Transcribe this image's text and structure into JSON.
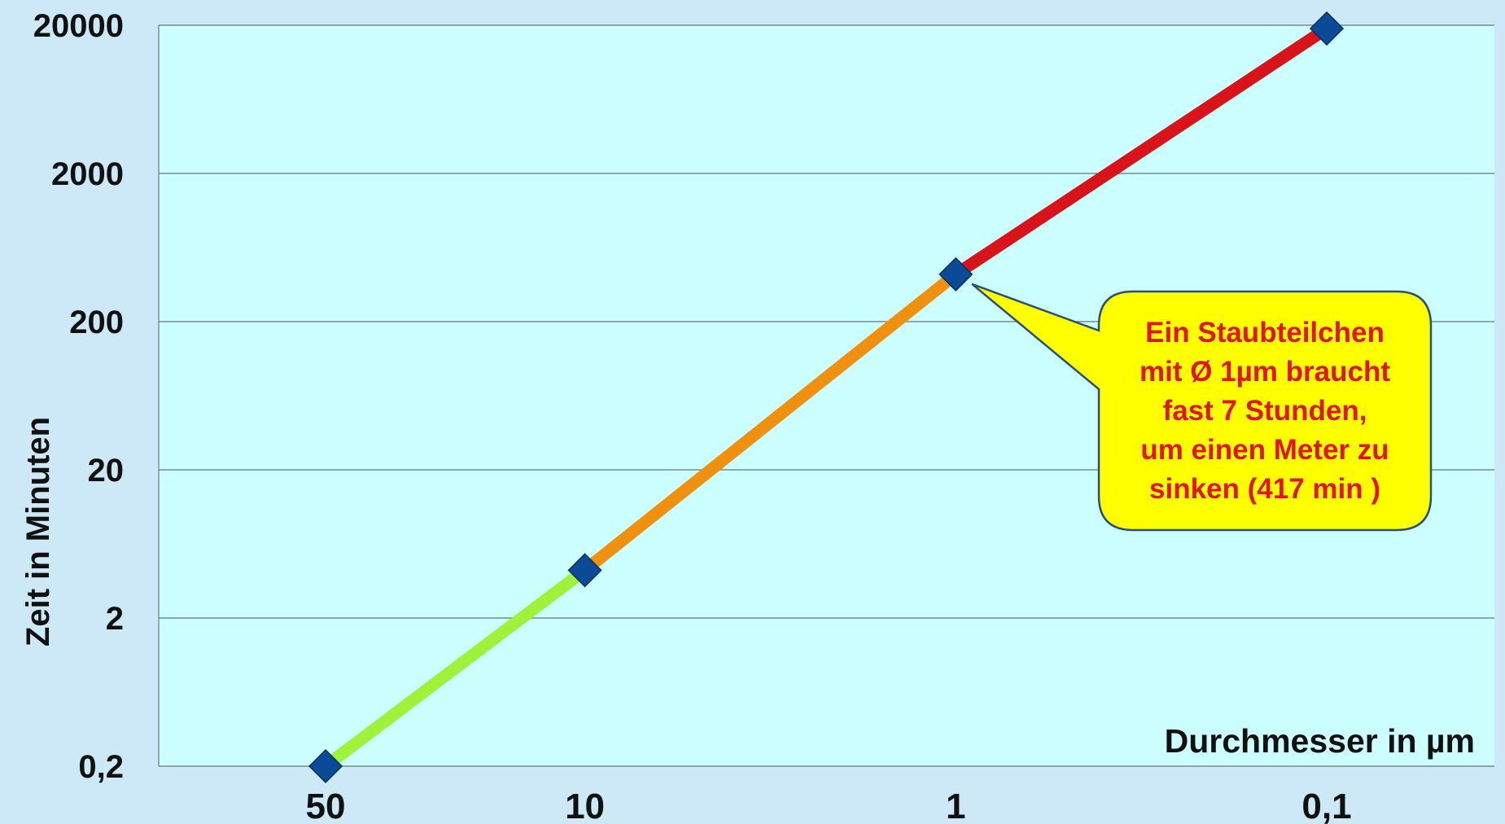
{
  "chart_data": {
    "type": "line",
    "title": "",
    "xlabel": "Durchmesser in µm",
    "ylabel": "Zeit in Minuten",
    "x_scale": "log-reversed",
    "y_scale": "log",
    "x_ticks": [
      {
        "value": 50,
        "label": "50"
      },
      {
        "value": 10,
        "label": "10"
      },
      {
        "value": 1,
        "label": "1"
      },
      {
        "value": 0.1,
        "label": "0,1"
      }
    ],
    "y_ticks": [
      {
        "value": 0.2,
        "label": "0,2"
      },
      {
        "value": 2,
        "label": "2"
      },
      {
        "value": 20,
        "label": "20"
      },
      {
        "value": 200,
        "label": "200"
      },
      {
        "value": 2000,
        "label": "2000"
      },
      {
        "value": 20000,
        "label": "20000"
      }
    ],
    "ylim": [
      0.2,
      20000
    ],
    "grid": true,
    "legend": "none",
    "points": [
      {
        "x": 50,
        "y": 0.2
      },
      {
        "x": 10,
        "y": 4.2
      },
      {
        "x": 1,
        "y": 417
      },
      {
        "x": 0.1,
        "y": 19000
      }
    ],
    "segments": [
      {
        "from": 0,
        "to": 1,
        "color": "#9ef23a"
      },
      {
        "from": 1,
        "to": 2,
        "color": "#f0900f"
      },
      {
        "from": 2,
        "to": 3,
        "color": "#d8141a"
      }
    ],
    "marker_color": "#0a4a96",
    "annotation": {
      "lines": [
        "Ein Staubteilchen",
        "mit Ø 1µm braucht",
        "fast 7 Stunden,",
        "um einen Meter zu",
        "sinken (417 min )"
      ],
      "points_to_index": 2,
      "fill": "#ffff00",
      "text_color": "#e3141b"
    },
    "colors": {
      "page_background": "#cde9f7",
      "plot_background": "#ccffff",
      "gridline": "#7a8a8a"
    }
  }
}
